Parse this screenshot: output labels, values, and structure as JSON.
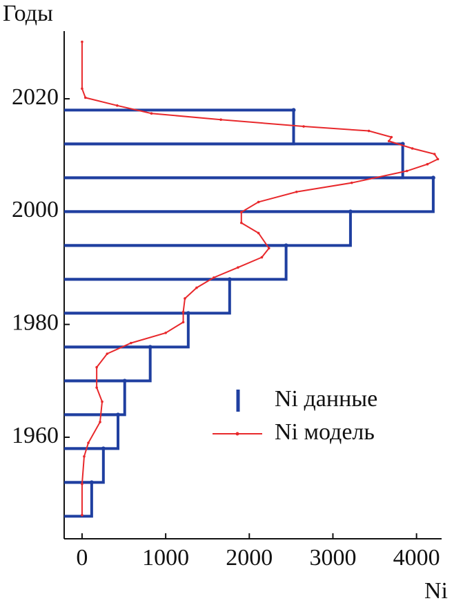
{
  "chart_data": {
    "type": "histogram",
    "orientation": "horizontal",
    "y_label": "Годы",
    "x_label": "Ni",
    "xlim": [
      -214,
      4300
    ],
    "xticks": [
      0,
      1000,
      2000,
      3000,
      4000
    ],
    "ylim": [
      1942,
      2032
    ],
    "yticks": [
      1960,
      1980,
      2000,
      2020
    ],
    "series": [
      {
        "name": "Ni данные",
        "type": "histogram",
        "color": "#1f3fa0",
        "bins": [
          1946,
          1952,
          1958,
          1964,
          1970,
          1976,
          1982,
          1988,
          1994,
          2000,
          2006,
          2012,
          2018
        ],
        "values": [
          115,
          255,
          430,
          510,
          815,
          1270,
          1765,
          2440,
          3210,
          4200,
          3835,
          2530
        ]
      },
      {
        "name": "Ni модель",
        "type": "line",
        "color": "#e8282b",
        "years": [
          2030.1,
          2021.8,
          2020.2,
          2018.8,
          2017.4,
          2016.3,
          2015.1,
          2014.3,
          2013.2,
          2012.5,
          2011.2,
          2010.2,
          2009.3,
          2008.4,
          2007.2,
          2005.1,
          2003.5,
          2001.7,
          1999.9,
          1998,
          1996.2,
          1993.5,
          1991.9,
          1990.1,
          1988.3,
          1986.5,
          1984.6,
          1982.2,
          1980.4,
          1978.5,
          1976.7,
          1974.8,
          1972.4,
          1968.8,
          1966.3,
          1962.7,
          1959,
          1956.6,
          1951.7,
          1946.2
        ],
        "values": [
          0,
          0,
          40,
          420,
          830,
          1660,
          2650,
          3430,
          3700,
          3670,
          3950,
          4215,
          4255,
          4130,
          3885,
          3225,
          2565,
          2110,
          1905,
          1905,
          2110,
          2235,
          2150,
          1865,
          1575,
          1370,
          1230,
          1210,
          1210,
          1000,
          585,
          300,
          175,
          175,
          240,
          215,
          75,
          25,
          0,
          0
        ]
      }
    ]
  }
}
